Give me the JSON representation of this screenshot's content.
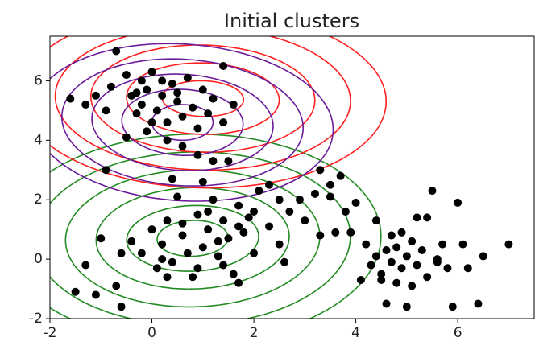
{
  "chart_data": {
    "type": "scatter",
    "title": "Initial clusters",
    "xlim": [
      -2,
      7.5
    ],
    "ylim": [
      -2,
      7.5
    ],
    "xticks": [
      -2,
      0,
      2,
      4,
      6
    ],
    "yticks": [
      -2,
      0,
      2,
      4,
      6
    ],
    "color": "#000000",
    "x": [
      -1.6,
      -1.3,
      -1.1,
      -0.9,
      -0.8,
      -0.7,
      -0.5,
      -0.4,
      -0.3,
      -0.2,
      -0.1,
      0.0,
      0.1,
      0.2,
      0.3,
      0.4,
      0.5,
      0.6,
      0.7,
      0.8,
      0.9,
      1.0,
      1.1,
      1.2,
      1.4,
      1.6,
      1.5,
      0.3,
      -0.1,
      -0.5,
      -0.9,
      0.6,
      1.4,
      0.2,
      -0.2,
      0.9,
      -0.3,
      0.5,
      0.0,
      1.2,
      -1.5,
      -1.3,
      -1.1,
      -1.0,
      -0.7,
      -0.6,
      -0.4,
      -0.2,
      0.0,
      0.1,
      0.2,
      0.3,
      0.4,
      0.5,
      0.6,
      0.7,
      0.8,
      0.9,
      1.0,
      1.1,
      1.2,
      1.3,
      1.4,
      1.5,
      1.6,
      1.7,
      1.8,
      1.9,
      2.0,
      2.1,
      2.3,
      2.5,
      2.7,
      2.9,
      3.0,
      3.3,
      3.6,
      3.5,
      3.8,
      2.3,
      2.5,
      1.0,
      0.4,
      0.9,
      1.3,
      0.2,
      1.7,
      1.1,
      0.6,
      1.4,
      2.0,
      3.2,
      3.5,
      4.0,
      2.6,
      1.7,
      0.3,
      -0.6,
      3.3,
      3.7,
      3.9,
      4.1,
      4.2,
      4.3,
      4.4,
      4.5,
      4.6,
      4.6,
      4.7,
      4.8,
      4.9,
      5.0,
      5.0,
      5.1,
      5.2,
      5.3,
      5.4,
      5.4,
      5.5,
      5.6,
      5.7,
      5.8,
      5.9,
      6.0,
      6.1,
      6.2,
      6.4,
      6.5,
      7.0,
      4.4,
      4.8,
      5.2,
      5.6,
      4.7,
      5.1,
      4.5,
      4.9
    ],
    "values": [
      5.4,
      5.2,
      5.5,
      5.0,
      5.8,
      7.0,
      6.2,
      5.5,
      4.9,
      5.2,
      5.7,
      6.3,
      5.0,
      5.5,
      4.6,
      5.9,
      5.3,
      4.8,
      6.1,
      5.1,
      4.4,
      5.7,
      4.9,
      5.4,
      4.6,
      5.2,
      3.3,
      4.0,
      4.3,
      4.1,
      3.0,
      3.8,
      6.5,
      6.0,
      6.0,
      3.5,
      5.6,
      5.6,
      4.6,
      3.3,
      -1.1,
      -0.2,
      -1.2,
      0.7,
      -0.9,
      -1.6,
      0.6,
      0.2,
      1.0,
      -0.3,
      0.5,
      1.3,
      -0.1,
      2.1,
      0.8,
      0.2,
      -0.6,
      1.5,
      0.4,
      1.0,
      2.0,
      0.1,
      1.3,
      0.7,
      -0.5,
      1.8,
      0.9,
      1.4,
      0.2,
      2.3,
      1.1,
      0.5,
      1.6,
      2.0,
      1.3,
      0.8,
      0.9,
      2.1,
      1.6,
      2.5,
      2.0,
      2.6,
      2.7,
      -0.3,
      0.6,
      0.0,
      1.1,
      1.6,
      1.2,
      -0.2,
      1.6,
      2.2,
      2.5,
      1.9,
      -0.1,
      -0.8,
      -0.6,
      0.2,
      3.0,
      2.8,
      0.9,
      -0.7,
      0.5,
      -0.2,
      0.1,
      -0.5,
      0.3,
      -1.5,
      -0.1,
      0.4,
      -0.3,
      0.1,
      -1.6,
      0.6,
      -0.2,
      0.3,
      -0.6,
      1.4,
      2.3,
      0.0,
      0.5,
      -0.3,
      -1.6,
      1.9,
      0.5,
      -0.3,
      -1.5,
      0.1,
      0.5,
      1.3,
      -0.8,
      1.4,
      -0.1,
      0.8,
      -0.9,
      -0.7,
      0.9
    ],
    "contours": [
      {
        "color": "#228b22",
        "center": [
          0.8,
          0.7
        ],
        "angle": 10,
        "rx": [
          0.7,
          1.3,
          1.9,
          2.5,
          3.1,
          3.7
        ],
        "ry": [
          0.6,
          1.1,
          1.7,
          2.3,
          2.9,
          3.5
        ]
      },
      {
        "color": "#ff2020",
        "center": [
          1.0,
          5.4
        ],
        "angle": -5,
        "rx": [
          0.8,
          1.5,
          2.2,
          2.9,
          3.6
        ],
        "ry": [
          0.6,
          1.2,
          1.8,
          2.4,
          3.0
        ]
      },
      {
        "color": "#6a1b9a",
        "center": [
          0.6,
          4.6
        ],
        "angle": -20,
        "rx": [
          0.6,
          1.2,
          1.8,
          2.4,
          3.0
        ],
        "ry": [
          0.6,
          1.1,
          1.6,
          2.1,
          2.6
        ]
      }
    ]
  }
}
